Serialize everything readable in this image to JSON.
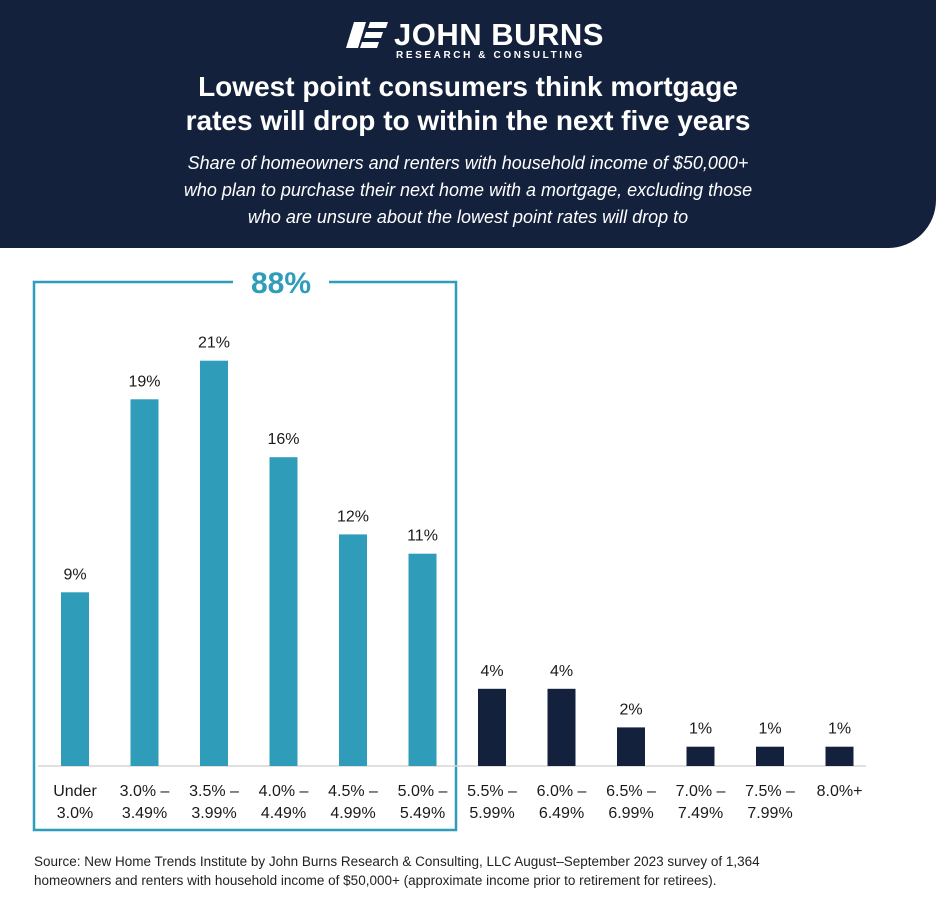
{
  "brand": {
    "name": "JOHN BURNS",
    "tagline": "RESEARCH & CONSULTING",
    "navy": "#14213d",
    "teal": "#2f9cba"
  },
  "header": {
    "title_lines": [
      "Lowest point consumers think mortgage",
      "rates will drop to within the next five years"
    ],
    "subtitle_lines": [
      "Share of homeowners and renters with household income of $50,000+",
      "who plan to purchase their next home with a mortgage, excluding those",
      "who are unsure about the lowest point rates will drop to"
    ]
  },
  "chart_data": {
    "type": "bar",
    "unit": "%",
    "categories": [
      [
        "Under",
        "3.0%"
      ],
      [
        "3.0% –",
        "3.49%"
      ],
      [
        "3.5% –",
        "3.99%"
      ],
      [
        "4.0% –",
        "4.49%"
      ],
      [
        "4.5% –",
        "4.99%"
      ],
      [
        "5.0% –",
        "5.49%"
      ],
      [
        "5.5% –",
        "5.99%"
      ],
      [
        "6.0% –",
        "6.49%"
      ],
      [
        "6.5% –",
        "6.99%"
      ],
      [
        "7.0% –",
        "7.49%"
      ],
      [
        "7.5% –",
        "7.99%"
      ],
      [
        "8.0%+"
      ]
    ],
    "values": [
      9,
      19,
      21,
      16,
      12,
      11,
      4,
      4,
      2,
      1,
      1,
      1
    ],
    "data_labels": [
      "9%",
      "19%",
      "21%",
      "16%",
      "12%",
      "11%",
      "4%",
      "4%",
      "2%",
      "1%",
      "1%",
      "1%"
    ],
    "highlight": {
      "label": "88%",
      "first_index": 0,
      "last_index": 5,
      "color": "#2f9cba"
    },
    "other_color": "#14213d",
    "ylim": [
      0,
      22
    ],
    "grid": false,
    "legend": false
  },
  "source": {
    "lines": [
      "Source: New Home Trends Institute by John Burns Research & Consulting, LLC August–September 2023 survey of 1,364",
      "homeowners and renters with household income of $50,000+ (approximate income prior to retirement for retirees)."
    ]
  }
}
